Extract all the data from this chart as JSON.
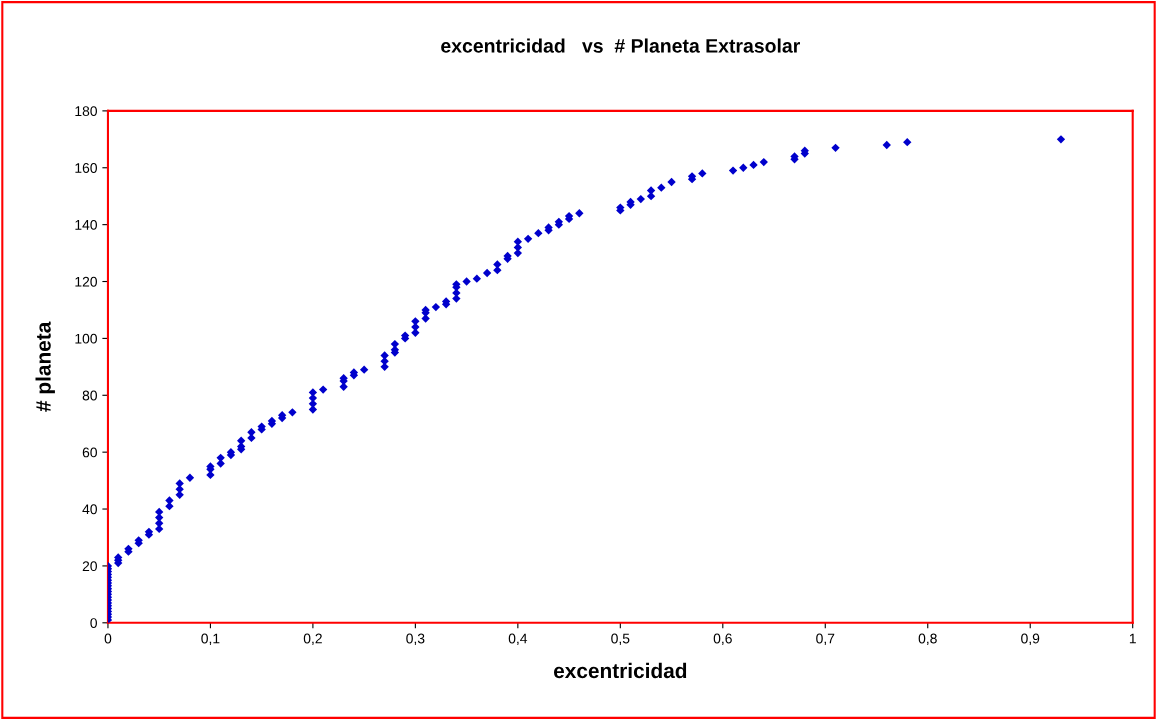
{
  "chart_data": {
    "type": "scatter",
    "title": "excentricidad   vs  # Planeta Extrasolar",
    "xlabel": "excentricidad",
    "ylabel": "# planeta",
    "marker": "diamond",
    "grid": false,
    "series": [
      {
        "color": "#0000cc",
        "x": [
          0,
          0,
          0,
          0,
          0,
          0,
          0,
          0,
          0,
          0,
          0,
          0,
          0,
          0,
          0,
          0,
          0,
          0,
          0,
          0,
          0.01,
          0.01,
          0.01,
          0.02,
          0.02,
          0.03,
          0.03,
          0.04,
          0.04,
          0.05,
          0.05,
          0.05,
          0.05,
          0.06,
          0.06,
          0.07,
          0.07,
          0.07,
          0.08,
          0.1,
          0.1,
          0.1,
          0.11,
          0.11,
          0.12,
          0.12,
          0.13,
          0.13,
          0.13,
          0.14,
          0.14,
          0.15,
          0.15,
          0.16,
          0.16,
          0.17,
          0.17,
          0.18,
          0.2,
          0.2,
          0.2,
          0.2,
          0.21,
          0.23,
          0.23,
          0.23,
          0.24,
          0.24,
          0.25,
          0.27,
          0.27,
          0.27,
          0.28,
          0.28,
          0.28,
          0.29,
          0.29,
          0.3,
          0.3,
          0.3,
          0.31,
          0.31,
          0.31,
          0.32,
          0.33,
          0.33,
          0.34,
          0.34,
          0.34,
          0.34,
          0.35,
          0.36,
          0.37,
          0.38,
          0.38,
          0.39,
          0.39,
          0.4,
          0.4,
          0.4,
          0.41,
          0.42,
          0.43,
          0.43,
          0.44,
          0.44,
          0.45,
          0.45,
          0.46,
          0.5,
          0.5,
          0.51,
          0.51,
          0.52,
          0.53,
          0.53,
          0.54,
          0.55,
          0.57,
          0.57,
          0.58,
          0.61,
          0.62,
          0.63,
          0.64,
          0.67,
          0.67,
          0.68,
          0.68,
          0.71,
          0.76,
          0.78,
          0.93
        ],
        "values": [
          1,
          2,
          3,
          4,
          5,
          6,
          7,
          8,
          9,
          10,
          11,
          12,
          13,
          14,
          15,
          16,
          17,
          18,
          19,
          20,
          21,
          22,
          23,
          25,
          26,
          28,
          29,
          31,
          32,
          33,
          35,
          37,
          39,
          41,
          43,
          45,
          47,
          49,
          51,
          52,
          54,
          55,
          56,
          58,
          59,
          60,
          61,
          62,
          64,
          65,
          67,
          68,
          69,
          70,
          71,
          72,
          73,
          74,
          75,
          77,
          79,
          81,
          82,
          83,
          85,
          86,
          87,
          88,
          89,
          90,
          92,
          94,
          95,
          96,
          98,
          100,
          101,
          102,
          104,
          106,
          107,
          109,
          110,
          111,
          112,
          113,
          114,
          116,
          118,
          119,
          120,
          121,
          123,
          124,
          126,
          128,
          129,
          130,
          132,
          134,
          135,
          137,
          138,
          139,
          140,
          141,
          142,
          143,
          144,
          145,
          146,
          147,
          148,
          149,
          150,
          152,
          153,
          155,
          156,
          157,
          158,
          159,
          160,
          161,
          162,
          163,
          164,
          165,
          166,
          167,
          168,
          169,
          170
        ]
      }
    ],
    "xlim": [
      0,
      1
    ],
    "ylim": [
      0,
      180
    ],
    "xticks": [
      0,
      {
        "value": 0.1,
        "label": "0,1"
      },
      {
        "value": 0.2,
        "label": "0,2"
      },
      {
        "value": 0.3,
        "label": "0,3"
      },
      {
        "value": 0.4,
        "label": "0,4"
      },
      {
        "value": 0.5,
        "label": "0,5"
      },
      {
        "value": 0.6,
        "label": "0,6"
      },
      {
        "value": 0.7,
        "label": "0,7"
      },
      {
        "value": 0.8,
        "label": "0,8"
      },
      {
        "value": 0.9,
        "label": "0,9"
      },
      1
    ],
    "yticks": [
      0,
      20,
      40,
      60,
      80,
      100,
      120,
      140,
      160,
      180
    ]
  }
}
